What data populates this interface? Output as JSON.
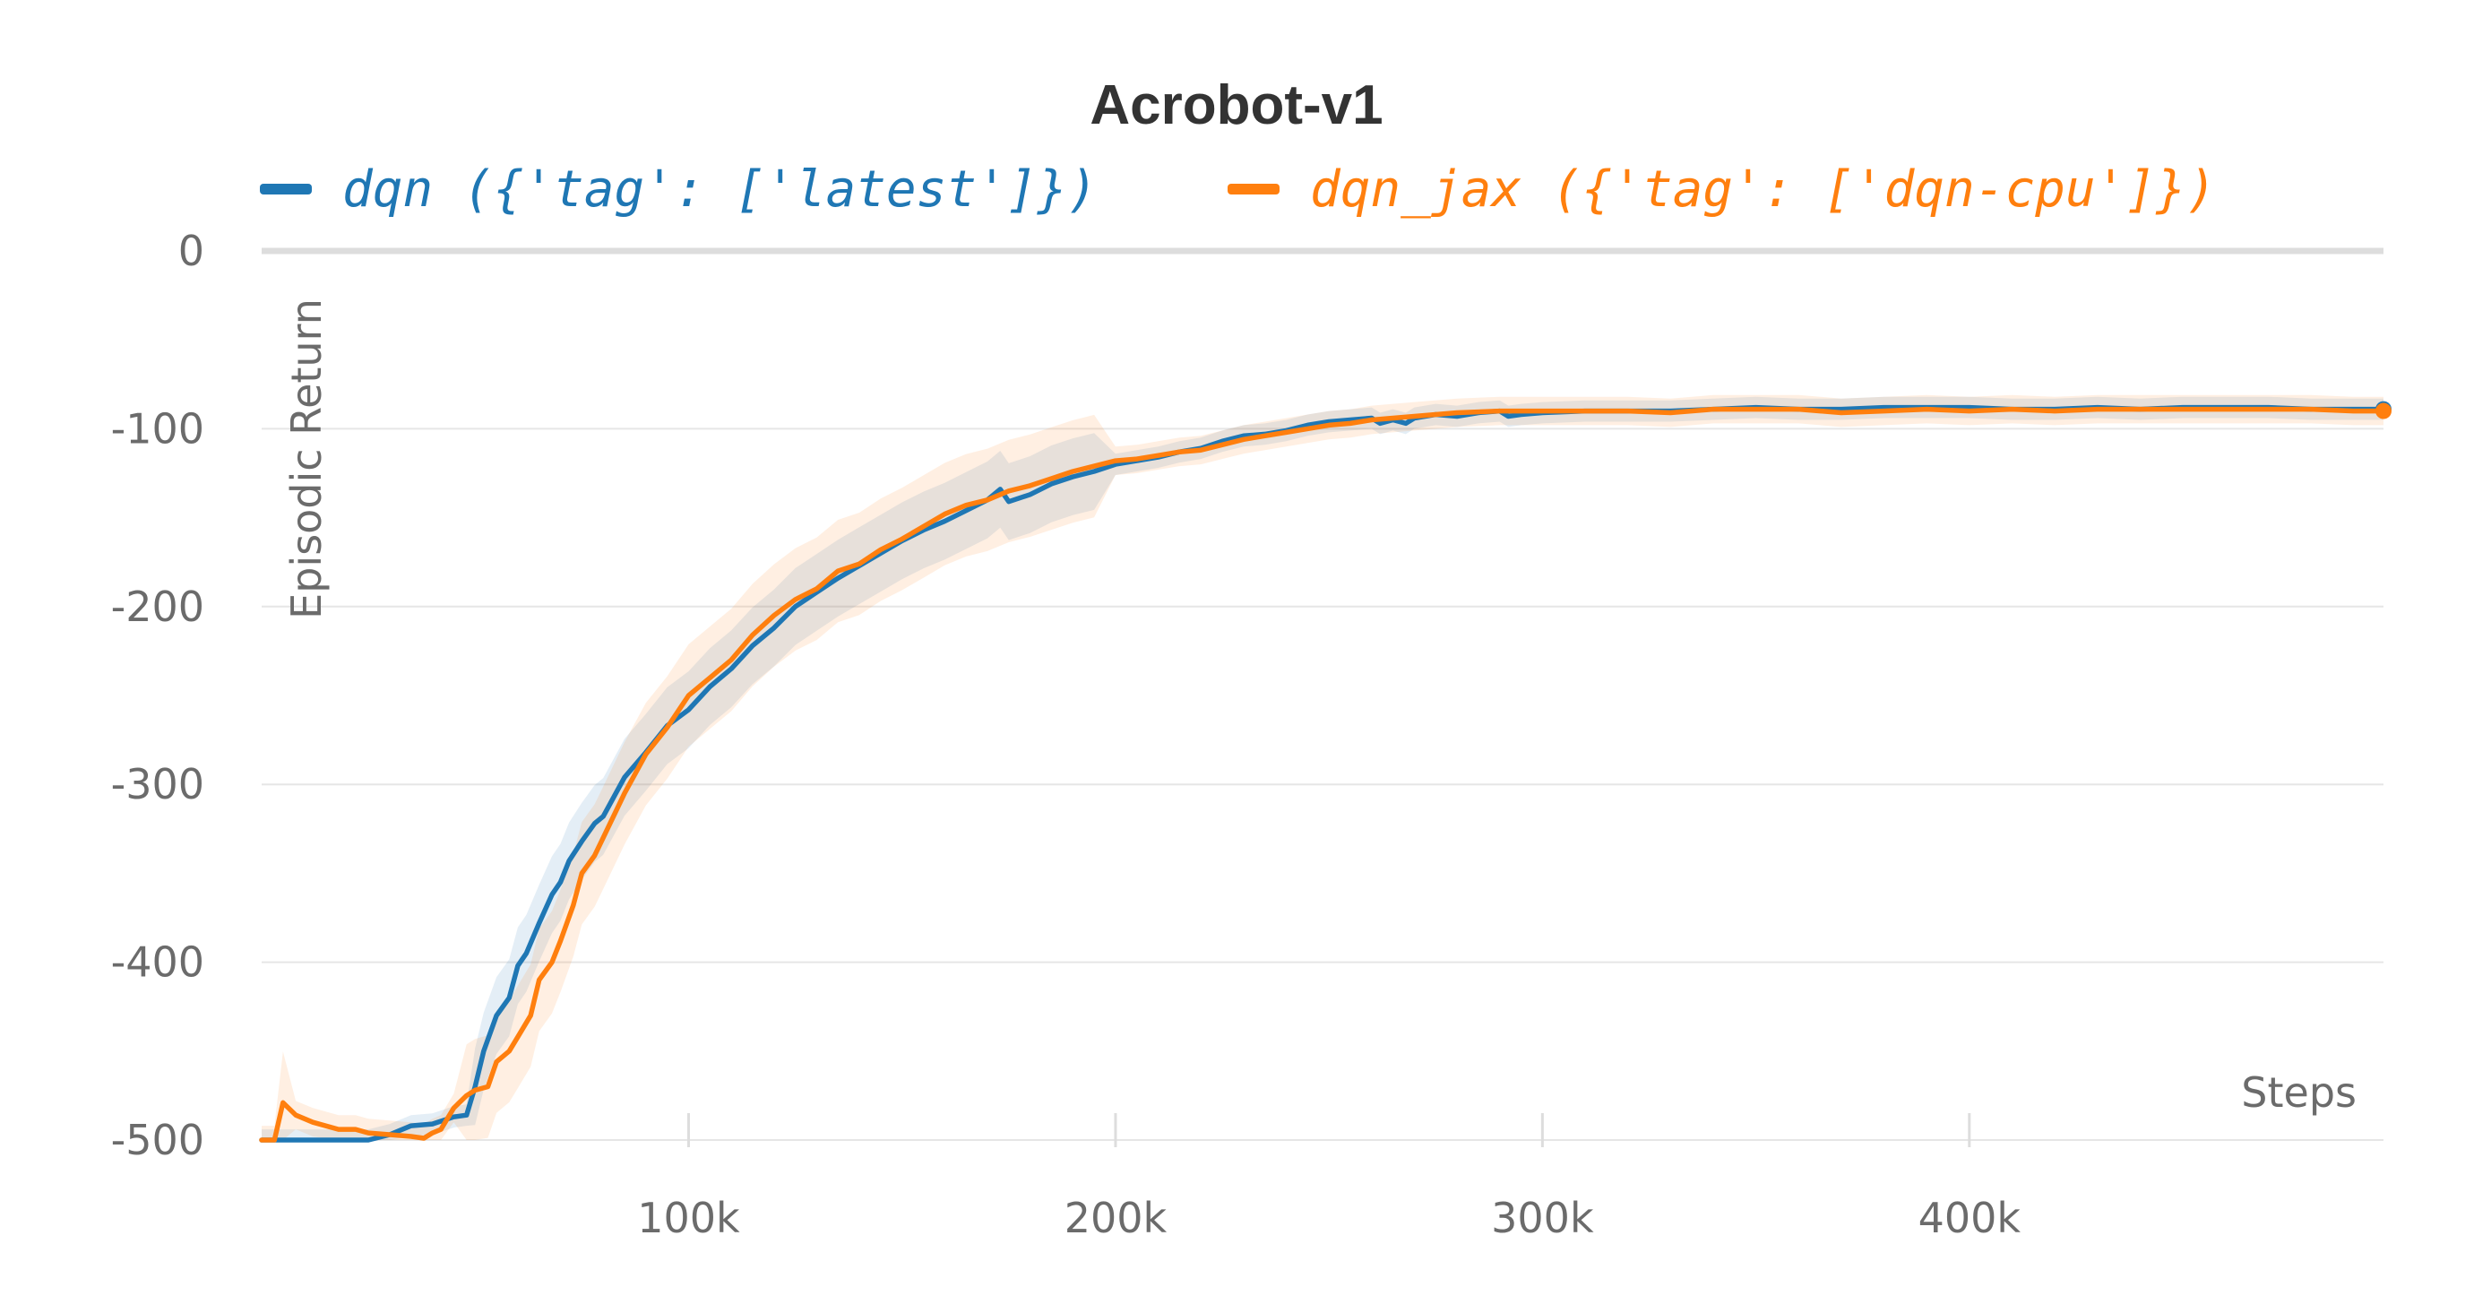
{
  "chart_data": {
    "type": "line",
    "title": "Acrobot-v1",
    "xlabel": "Steps",
    "ylabel": "Episodic Return",
    "xlim": [
      0,
      497000
    ],
    "ylim": [
      -500,
      0
    ],
    "x_ticks": [
      "100k",
      "200k",
      "300k",
      "400k"
    ],
    "x_tick_values": [
      100000,
      200000,
      300000,
      400000
    ],
    "y_ticks": [
      "0",
      "-100",
      "-200",
      "-300",
      "-400",
      "-500"
    ],
    "y_tick_values": [
      0,
      -100,
      -200,
      -300,
      -400,
      -500
    ],
    "grid": true,
    "legend_position": "top",
    "series": [
      {
        "name": "dqn ({'tag': ['latest']})",
        "color": "#1f77b4",
        "band": 12,
        "x": [
          0,
          10000,
          20000,
          25000,
          30000,
          35000,
          40000,
          45000,
          48000,
          50000,
          52000,
          55000,
          58000,
          60000,
          62000,
          65000,
          68000,
          70000,
          72000,
          75000,
          78000,
          80000,
          85000,
          90000,
          95000,
          100000,
          105000,
          110000,
          115000,
          120000,
          125000,
          130000,
          135000,
          140000,
          145000,
          150000,
          155000,
          160000,
          165000,
          170000,
          173000,
          175000,
          180000,
          185000,
          190000,
          195000,
          200000,
          205000,
          210000,
          215000,
          220000,
          225000,
          230000,
          235000,
          240000,
          245000,
          250000,
          255000,
          260000,
          262000,
          265000,
          268000,
          270000,
          275000,
          280000,
          285000,
          290000,
          292000,
          295000,
          300000,
          310000,
          320000,
          330000,
          340000,
          350000,
          360000,
          370000,
          380000,
          390000,
          400000,
          410000,
          420000,
          430000,
          440000,
          450000,
          460000,
          470000,
          480000,
          490000,
          497000
        ],
        "y": [
          -500,
          -500,
          -500,
          -500,
          -497,
          -492,
          -491,
          -487,
          -486,
          -470,
          -450,
          -430,
          -420,
          -402,
          -395,
          -378,
          -362,
          -355,
          -343,
          -332,
          -322,
          -318,
          -296,
          -282,
          -267,
          -258,
          -245,
          -235,
          -222,
          -212,
          -200,
          -192,
          -184,
          -177,
          -170,
          -163,
          -157,
          -152,
          -146,
          -140,
          -134,
          -141,
          -137,
          -131,
          -127,
          -124,
          -120,
          -118,
          -116,
          -113,
          -111,
          -107,
          -104,
          -103,
          -101,
          -98,
          -96,
          -95,
          -94,
          -97,
          -95,
          -97,
          -94,
          -92,
          -93,
          -91,
          -90,
          -93,
          -92,
          -91,
          -90,
          -90,
          -90,
          -89,
          -88,
          -89,
          -89,
          -88,
          -88,
          -88,
          -89,
          -89,
          -88,
          -89,
          -88,
          -88,
          -88,
          -89,
          -89,
          -89
        ]
      },
      {
        "name": "dqn_jax ({'tag': ['dqn-cpu']})",
        "color": "#ff7f0e",
        "band": 16,
        "x": [
          0,
          3000,
          5000,
          8000,
          12000,
          18000,
          22000,
          25000,
          30000,
          35000,
          38000,
          40000,
          42000,
          45000,
          48000,
          50000,
          53000,
          55000,
          58000,
          60000,
          63000,
          65000,
          68000,
          70000,
          73000,
          75000,
          78000,
          80000,
          85000,
          90000,
          95000,
          100000,
          105000,
          110000,
          115000,
          120000,
          125000,
          130000,
          135000,
          140000,
          145000,
          150000,
          155000,
          160000,
          165000,
          170000,
          175000,
          180000,
          185000,
          190000,
          195000,
          200000,
          205000,
          210000,
          215000,
          220000,
          225000,
          230000,
          235000,
          240000,
          245000,
          250000,
          255000,
          260000,
          265000,
          270000,
          280000,
          290000,
          300000,
          310000,
          320000,
          330000,
          340000,
          350000,
          360000,
          370000,
          380000,
          390000,
          400000,
          410000,
          420000,
          430000,
          440000,
          450000,
          460000,
          470000,
          480000,
          490000,
          497000
        ],
        "y": [
          -500,
          -500,
          -479,
          -486,
          -490,
          -494,
          -494,
          -496,
          -497,
          -498,
          -499,
          -496,
          -494,
          -482,
          -475,
          -472,
          -470,
          -456,
          -450,
          -442,
          -430,
          -410,
          -400,
          -388,
          -368,
          -350,
          -340,
          -330,
          -305,
          -283,
          -268,
          -250,
          -240,
          -230,
          -216,
          -205,
          -196,
          -190,
          -180,
          -176,
          -168,
          -162,
          -155,
          -148,
          -143,
          -140,
          -135,
          -132,
          -128,
          -124,
          -121,
          -118,
          -117,
          -115,
          -113,
          -112,
          -109,
          -106,
          -104,
          -102,
          -100,
          -98,
          -97,
          -95,
          -94,
          -93,
          -91,
          -90,
          -90,
          -90,
          -90,
          -91,
          -89,
          -89,
          -89,
          -91,
          -90,
          -89,
          -90,
          -89,
          -90,
          -89,
          -89,
          -89,
          -89,
          -89,
          -89,
          -90,
          -90
        ]
      }
    ]
  }
}
